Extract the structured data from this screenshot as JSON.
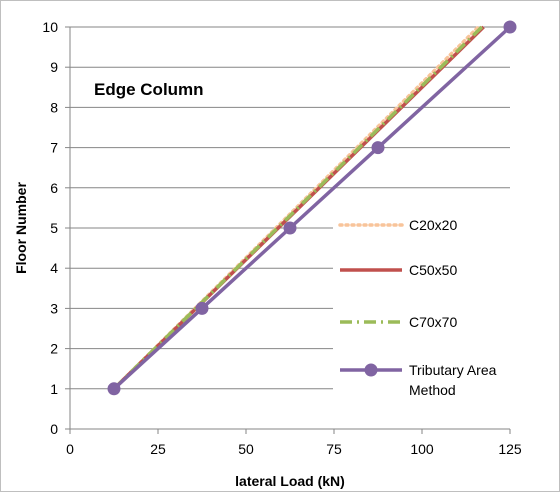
{
  "chart_data": {
    "type": "line",
    "title": "Edge Column",
    "xlabel": "lateral Load (kN)",
    "ylabel": "Floor Number",
    "xlim": [
      0,
      125
    ],
    "ylim": [
      0,
      10
    ],
    "xticks": [
      0,
      25,
      50,
      75,
      100,
      125
    ],
    "yticks": [
      0,
      1,
      2,
      3,
      4,
      5,
      6,
      7,
      8,
      9,
      10
    ],
    "grid": "horizontal",
    "legend_position": "right",
    "series": [
      {
        "name": "C20x20",
        "style": "dotted",
        "color": "#f8c49a",
        "markers": false,
        "x": [
          12.5,
          116
        ],
        "y": [
          1,
          10
        ]
      },
      {
        "name": "C50x50",
        "style": "solid",
        "color": "#c0504d",
        "markers": false,
        "x": [
          12.5,
          117.5
        ],
        "y": [
          1,
          10
        ]
      },
      {
        "name": "C70x70",
        "style": "dashdot",
        "color": "#9bbb59",
        "markers": false,
        "x": [
          12.5,
          117
        ],
        "y": [
          1,
          10
        ]
      },
      {
        "name": "Tributary Area Method",
        "style": "solid",
        "color": "#8064a2",
        "markers": true,
        "x": [
          12.5,
          37.5,
          62.5,
          87.5,
          125
        ],
        "y": [
          1,
          3,
          5,
          7,
          10
        ]
      }
    ]
  }
}
